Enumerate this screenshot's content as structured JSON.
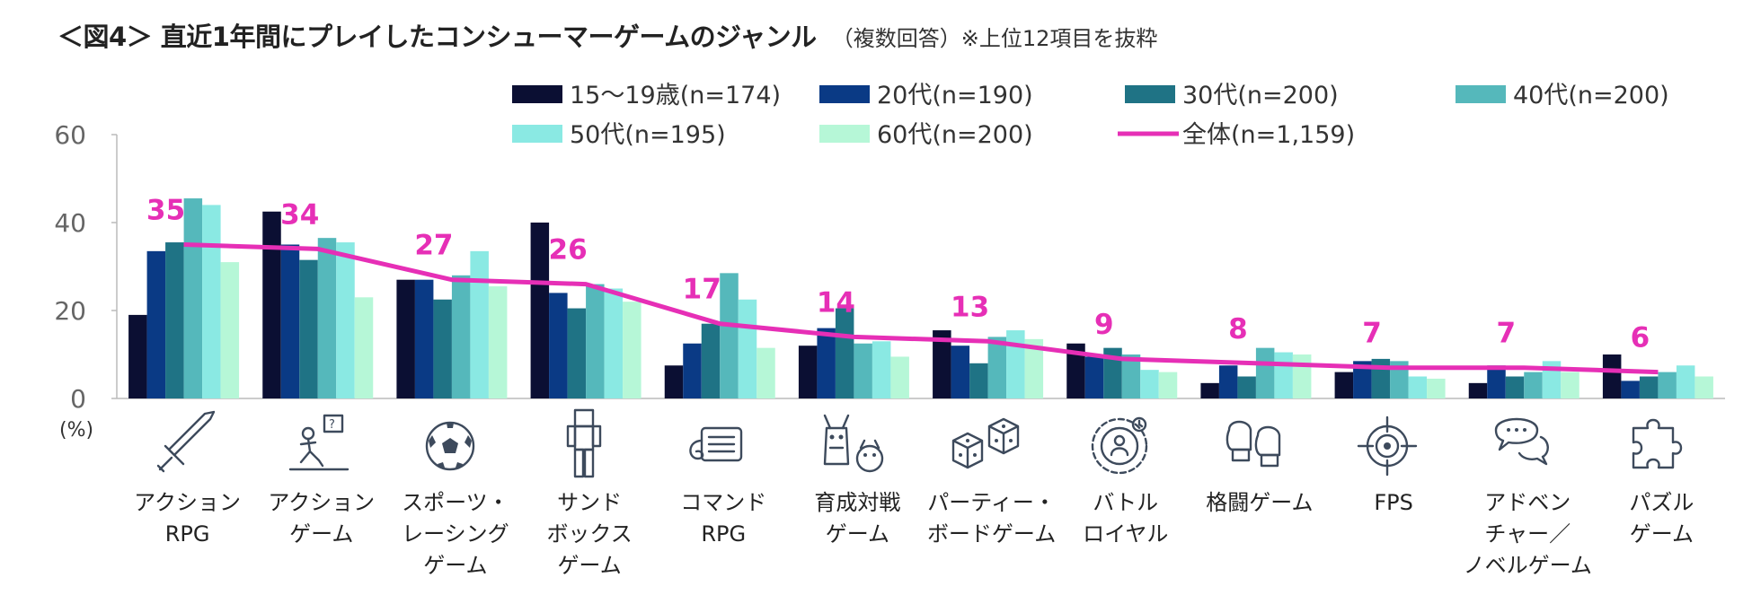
{
  "title": "＜図4＞ 直近1年間にプレイしたコンシューマーゲームのジャンル",
  "subtitle": "（複数回答）※上位12項目を抜粋",
  "chart_data": {
    "type": "bar",
    "unit_label": "(%)",
    "ylim": [
      0,
      60
    ],
    "yticks": [
      "0",
      "20",
      "40",
      "60"
    ],
    "legend_position": "top",
    "grid": false,
    "categories": [
      "アクション\nRPG",
      "アクション\nゲーム",
      "スポーツ・\nレーシング\nゲーム",
      "サンド\nボックス\nゲーム",
      "コマンド\nRPG",
      "育成対戦\nゲーム",
      "パーティー・\nボードゲーム",
      "バトル\nロイヤル",
      "格闘ゲーム",
      "FPS",
      "アドベン\nチャー／\nノベルゲーム",
      "パズル\nゲーム"
    ],
    "icons": [
      "sword-icon",
      "action-game-icon",
      "soccer-ball-icon",
      "blocky-character-icon",
      "command-window-icon",
      "monster-icon",
      "dice-icon",
      "battle-royale-icon",
      "boxing-gloves-icon",
      "crosshair-icon",
      "speech-bubble-icon",
      "puzzle-piece-icon"
    ],
    "series": [
      {
        "name": "15～19歳(n=174)",
        "color": "#0b0f33",
        "values": [
          19,
          42.5,
          27,
          40,
          7.5,
          12,
          15.5,
          12.5,
          3.5,
          6,
          3.5,
          10
        ]
      },
      {
        "name": "20代(n=190)",
        "color": "#0a3a85",
        "values": [
          33.5,
          35,
          27,
          24,
          12.5,
          16,
          12,
          9.5,
          7.5,
          8.5,
          7.5,
          4
        ]
      },
      {
        "name": "30代(n=200)",
        "color": "#1f7385",
        "values": [
          35.5,
          31.5,
          22.5,
          20.5,
          17,
          20.5,
          8,
          11.5,
          5,
          9,
          5,
          5
        ]
      },
      {
        "name": "40代(n=200)",
        "color": "#55b8bb",
        "values": [
          45.5,
          36.5,
          28,
          26,
          28.5,
          12.5,
          14,
          10,
          11.5,
          8.5,
          6,
          6
        ]
      },
      {
        "name": "50代(n=195)",
        "color": "#8ae9e3",
        "values": [
          44,
          35.5,
          33.5,
          25,
          22.5,
          13,
          15.5,
          6.5,
          10.5,
          5,
          8.5,
          7.5
        ]
      },
      {
        "name": "60代(n=200)",
        "color": "#b6f7d7",
        "values": [
          31,
          23,
          25.5,
          22,
          11.5,
          9.5,
          13.5,
          6,
          10,
          4.5,
          6,
          5
        ]
      }
    ],
    "total": {
      "name": "全体(n=1,159)",
      "color": "#e62fb6",
      "values": [
        35,
        34,
        27,
        26,
        17,
        14,
        13,
        9,
        8,
        7,
        7,
        6
      ],
      "labels": [
        "35",
        "34",
        "27",
        "26",
        "17",
        "14",
        "13",
        "9",
        "8",
        "7",
        "7",
        "6"
      ]
    }
  }
}
